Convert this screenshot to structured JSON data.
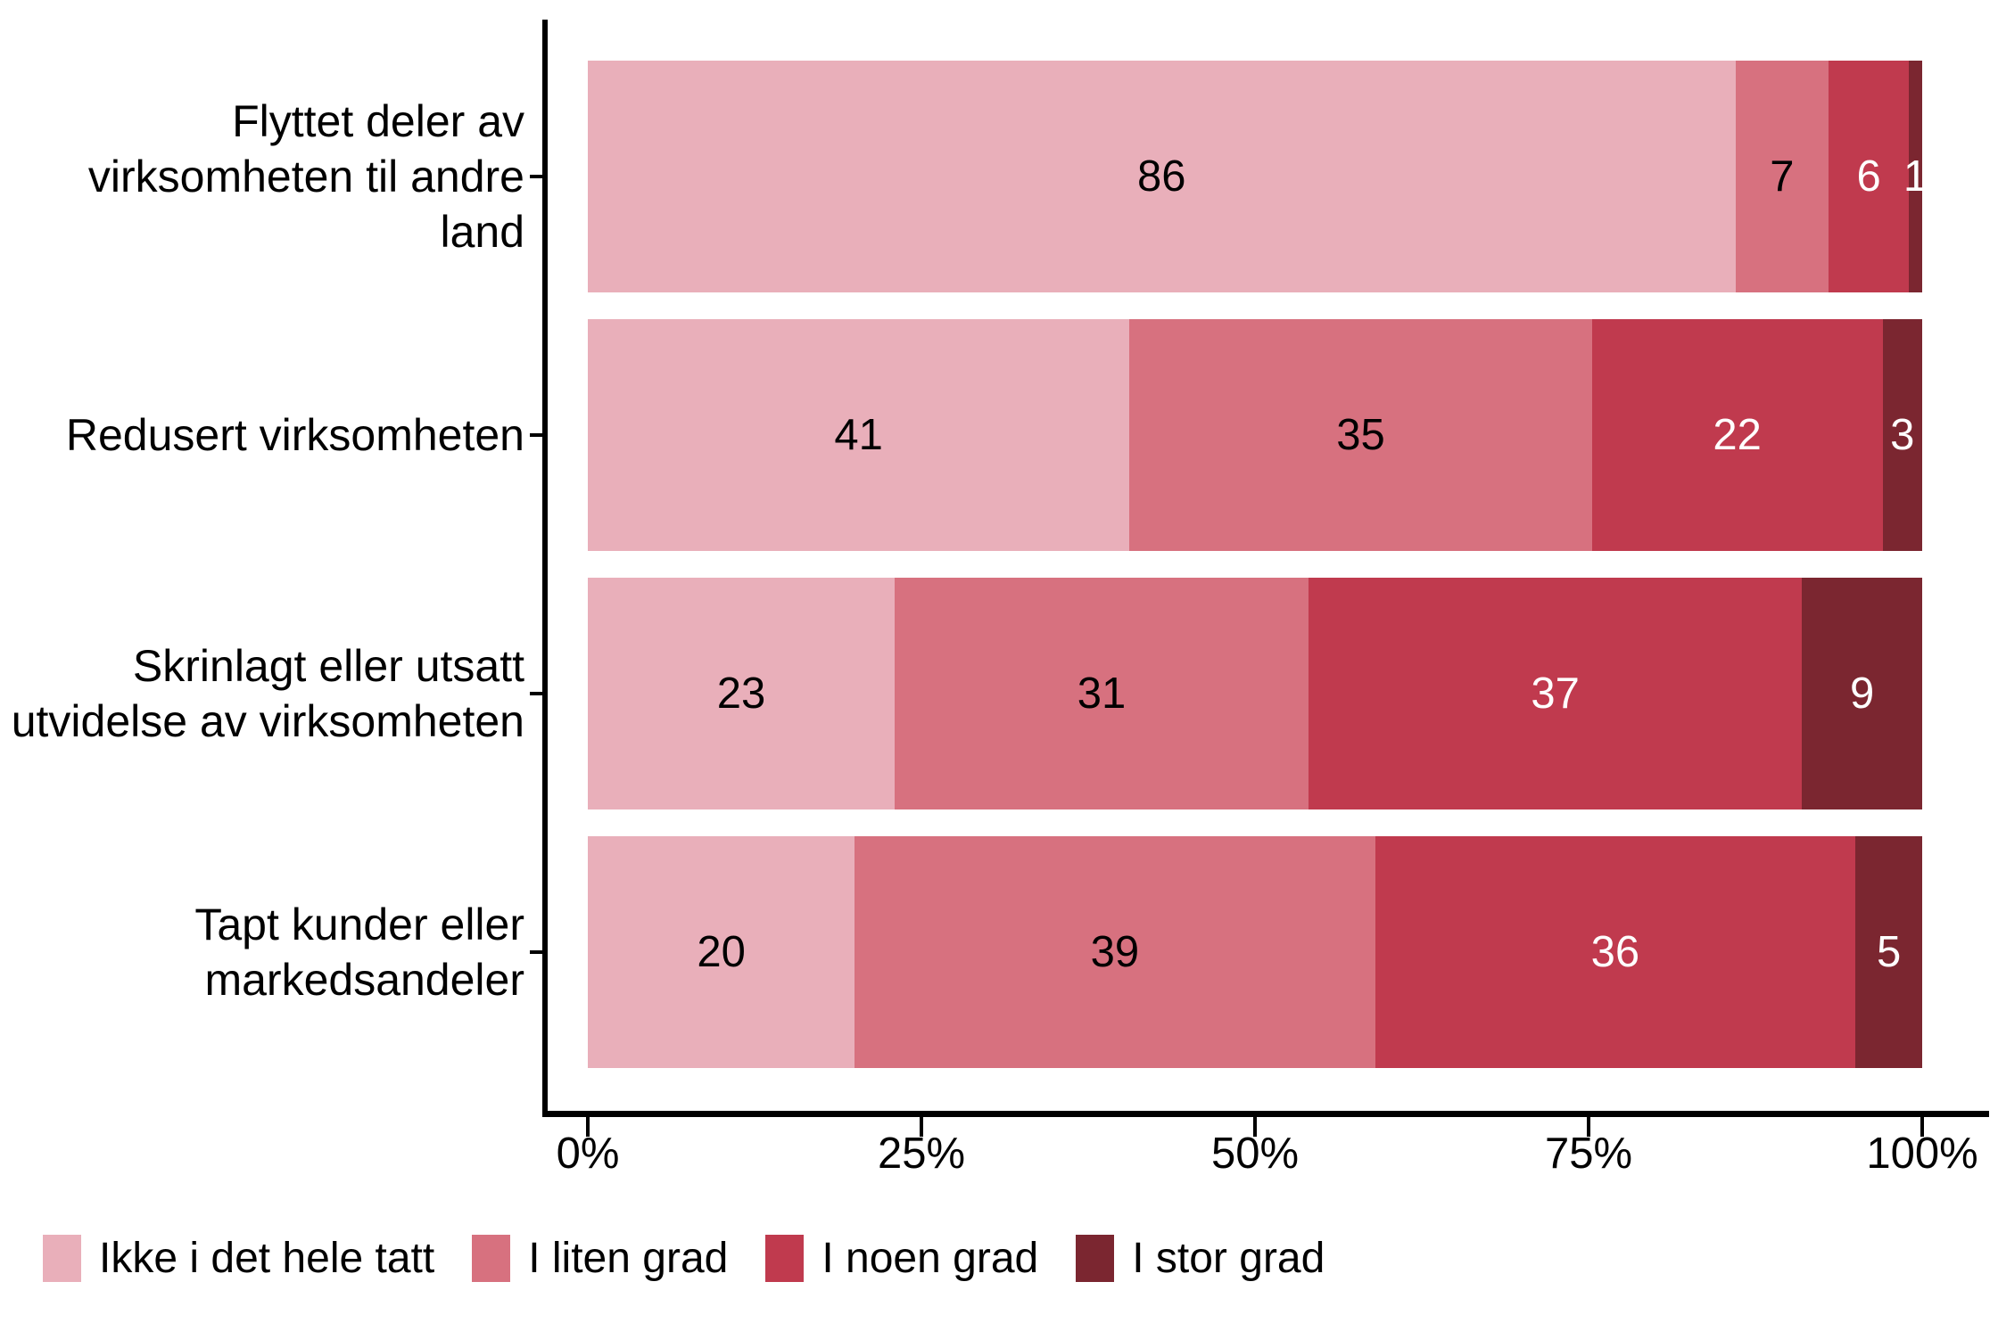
{
  "chart_data": {
    "type": "bar",
    "orientation": "horizontal",
    "stacked": true,
    "unit": "percent",
    "title": "",
    "xlabel": "",
    "ylabel": "",
    "x_axis": {
      "range": [
        0,
        100
      ],
      "tick_labels": [
        "0%",
        "25%",
        "50%",
        "75%",
        "100%"
      ],
      "grid": false
    },
    "categories": [
      "Flyttet deler av virksomheten til andre land",
      "Redusert virksomheten",
      "Skrinlagt eller utsatt utvidelse av virksomheten",
      "Tapt kunder eller markedsandeler"
    ],
    "category_label_lines": [
      [
        "Flyttet deler av",
        "virksomheten til andre",
        "land"
      ],
      [
        "Redusert virksomheten"
      ],
      [
        "Skrinlagt eller utsatt",
        "utvidelse av virksomheten"
      ],
      [
        "Tapt kunder eller",
        "markedsandeler"
      ]
    ],
    "series": [
      {
        "name": "Ikke i det hele tatt",
        "color": "#E9AFBA",
        "value_label_color": "#000000",
        "values": [
          86,
          41,
          23,
          20
        ]
      },
      {
        "name": "I liten grad",
        "color": "#D7717F",
        "value_label_color": "#000000",
        "values": [
          7,
          35,
          31,
          39
        ]
      },
      {
        "name": "I noen grad",
        "color": "#C03A4E",
        "value_label_color": "#FFFFFF",
        "values": [
          6,
          22,
          37,
          36
        ]
      },
      {
        "name": "I stor grad",
        "color": "#7B2630",
        "value_label_color": "#FFFFFF",
        "values": [
          1,
          3,
          9,
          5
        ]
      }
    ],
    "legend_position": "bottom-left",
    "axis_color": "#000000",
    "text_color": "#000000"
  }
}
